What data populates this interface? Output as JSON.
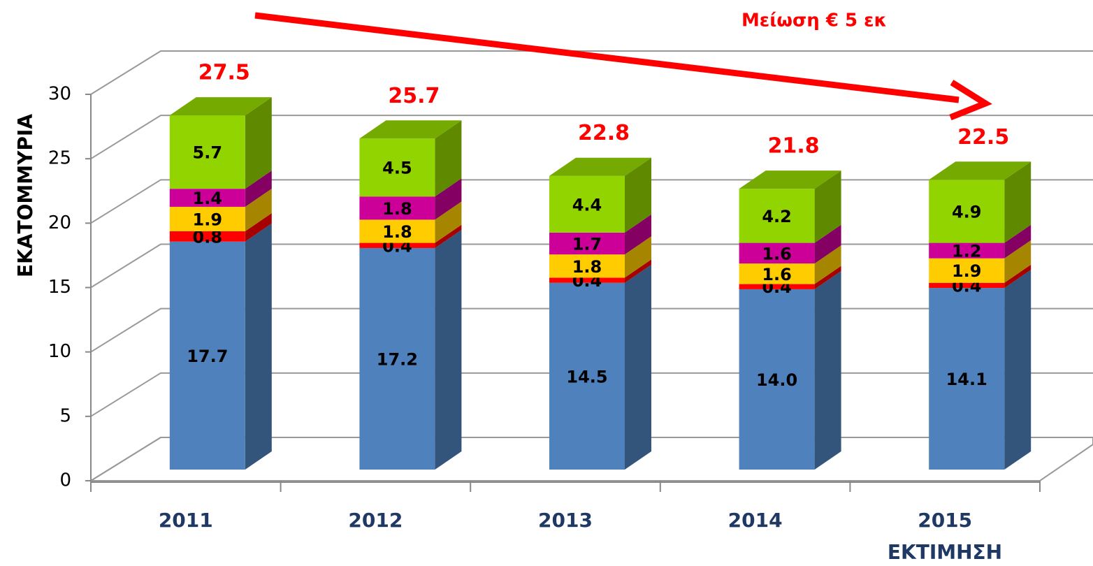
{
  "chart_data": {
    "type": "bar3d-stacked",
    "y_label": "ΕΚΑΤΟΜΜΥΡΙΑ",
    "categories": [
      "2011",
      "2012",
      "2013",
      "2014",
      "2015"
    ],
    "series": [
      {
        "color": "#4f81bd",
        "values": [
          17.7,
          17.2,
          14.5,
          14.0,
          14.1
        ],
        "value_labels": [
          "17.7",
          "17.2",
          "14.5",
          "14.0",
          "14.1"
        ]
      },
      {
        "color": "#ff0000",
        "values": [
          0.8,
          0.4,
          0.4,
          0.4,
          0.4
        ]
      },
      {
        "color": "#ffcc00",
        "values": [
          1.9,
          1.8,
          1.8,
          1.6,
          1.9
        ]
      },
      {
        "color": "#cc0099",
        "values": [
          1.4,
          1.8,
          1.7,
          1.6,
          1.2
        ]
      },
      {
        "color": "#92d400",
        "values": [
          5.7,
          4.5,
          4.4,
          4.2,
          4.9
        ]
      }
    ],
    "totals": {
      "color": "#ff0000",
      "values": [
        27.5,
        25.7,
        22.8,
        21.8,
        22.5
      ]
    },
    "annotations": [
      "Μείωση € 5 εκ",
      "ΕΚΤΙΜΗΣΗ"
    ],
    "ylim": [
      0,
      30
    ],
    "yticks": [
      0,
      5,
      10,
      15,
      20,
      25,
      30
    ],
    "grid": true
  }
}
